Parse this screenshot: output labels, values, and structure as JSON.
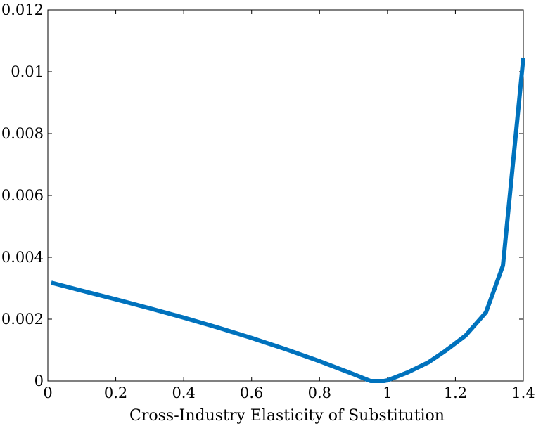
{
  "chart_data": {
    "type": "line",
    "title": "",
    "xlabel": "Cross-Industry Elasticity of Substitution",
    "ylabel": "",
    "xlim": [
      0,
      1.4
    ],
    "ylim": [
      0,
      0.012
    ],
    "x_ticks": [
      0,
      0.2,
      0.4,
      0.6,
      0.8,
      1,
      1.2,
      1.4
    ],
    "x_tick_labels": [
      "0",
      "0.2",
      "0.4",
      "0.6",
      "0.8",
      "1",
      "1.2",
      "1.4"
    ],
    "y_ticks": [
      0,
      0.002,
      0.004,
      0.006,
      0.008,
      0.01,
      0.012
    ],
    "y_tick_labels": [
      "0",
      "0.002",
      "0.004",
      "0.006",
      "0.008",
      "0.01",
      "0.012"
    ],
    "grid": false,
    "legend": "none",
    "series": [
      {
        "color": "#0072bd",
        "x": [
          0.01,
          0.1,
          0.2,
          0.3,
          0.4,
          0.5,
          0.6,
          0.7,
          0.8,
          0.9,
          0.95,
          0.99,
          1.0,
          1.06,
          1.12,
          1.17,
          1.23,
          1.29,
          1.34,
          1.4
        ],
        "y": [
          0.00318,
          0.00292,
          0.00264,
          0.00235,
          0.00205,
          0.00173,
          0.00139,
          0.00103,
          0.00064,
          0.00022,
          0.0,
          0.0,
          2e-05,
          0.00028,
          0.0006,
          0.00097,
          0.00147,
          0.00222,
          0.00373,
          0.01045
        ]
      }
    ]
  }
}
